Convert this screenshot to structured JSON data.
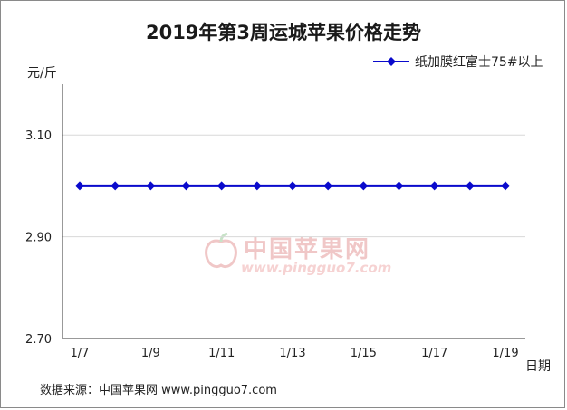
{
  "chart_data": {
    "type": "line",
    "title": "2019年第3周运城苹果价格走势",
    "ylabel": "元/斤",
    "xlabel": "日期",
    "x": [
      "1/7",
      "1/8",
      "1/9",
      "1/10",
      "1/11",
      "1/12",
      "1/13",
      "1/14",
      "1/15",
      "1/16",
      "1/17",
      "1/18",
      "1/19"
    ],
    "x_tick_labels": [
      "1/7",
      "1/9",
      "1/11",
      "1/13",
      "1/15",
      "1/17",
      "1/19"
    ],
    "y_ticks": [
      "2.70",
      "2.90",
      "3.10"
    ],
    "ylim": [
      2.7,
      3.2
    ],
    "series": [
      {
        "name": "纸加膜红富士75#以上",
        "values": [
          3.0,
          3.0,
          3.0,
          3.0,
          3.0,
          3.0,
          3.0,
          3.0,
          3.0,
          3.0,
          3.0,
          3.0,
          3.0
        ]
      }
    ],
    "grid": true,
    "legend_position": "top-right",
    "colors": {
      "series": "#0a0acc",
      "grid": "#d8d8d8",
      "axis": "#333333"
    }
  },
  "footer": "数据来源：中国苹果网 www.pingguo7.com",
  "watermark": {
    "name": "中国苹果网",
    "url": "www.pingguo7.com"
  }
}
